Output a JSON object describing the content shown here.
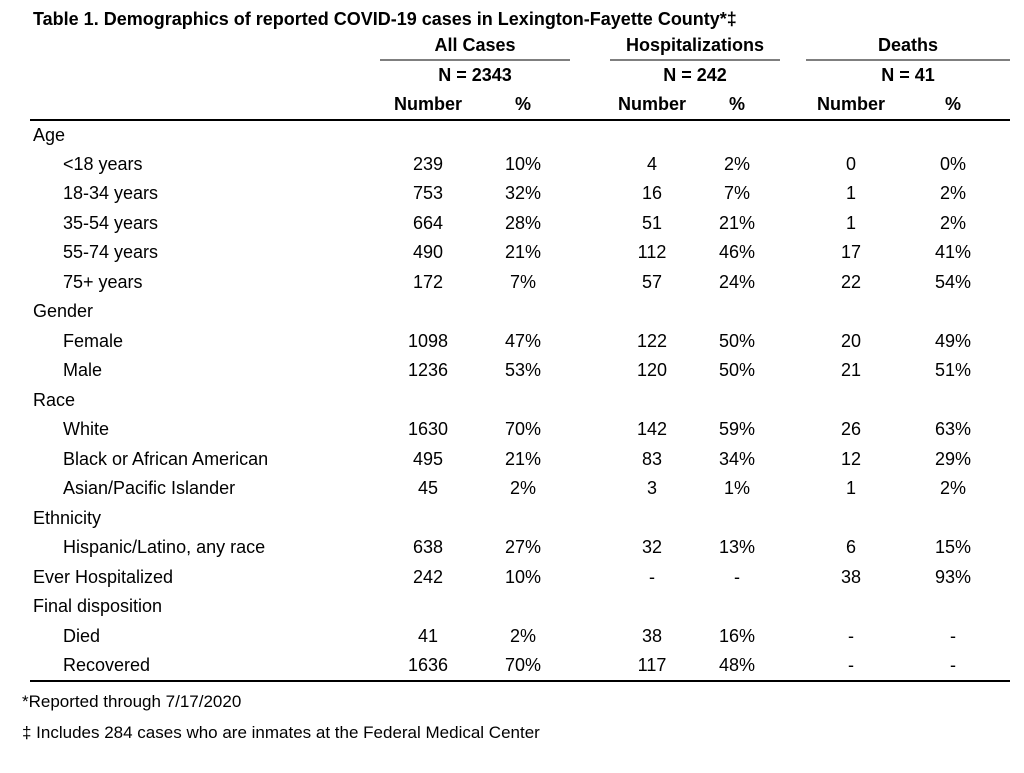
{
  "colors": {
    "background": "#ffffff",
    "text": "#000000",
    "rule": "#000000",
    "group_underline": "#7f7f7f"
  },
  "title": "Table 1. Demographics of reported COVID-19 cases in Lexington-Fayette County*‡",
  "table": {
    "groups": [
      {
        "label": "All Cases",
        "n_label": "N = 2343"
      },
      {
        "label": "Hospitalizations",
        "n_label": "N = 242"
      },
      {
        "label": "Deaths",
        "n_label": "N = 41"
      }
    ],
    "column_headers": {
      "number": "Number",
      "percent": "%"
    },
    "rows": [
      {
        "type": "category",
        "label": "Age"
      },
      {
        "type": "item",
        "label": "<18 years",
        "values": [
          "239",
          "10%",
          "4",
          "2%",
          "0",
          "0%"
        ]
      },
      {
        "type": "item",
        "label": "18-34 years",
        "values": [
          "753",
          "32%",
          "16",
          "7%",
          "1",
          "2%"
        ]
      },
      {
        "type": "item",
        "label": "35-54 years",
        "values": [
          "664",
          "28%",
          "51",
          "21%",
          "1",
          "2%"
        ]
      },
      {
        "type": "item",
        "label": "55-74 years",
        "values": [
          "490",
          "21%",
          "112",
          "46%",
          "17",
          "41%"
        ]
      },
      {
        "type": "item",
        "label": "75+ years",
        "values": [
          "172",
          "7%",
          "57",
          "24%",
          "22",
          "54%"
        ]
      },
      {
        "type": "category",
        "label": "Gender"
      },
      {
        "type": "item",
        "label": "Female",
        "values": [
          "1098",
          "47%",
          "122",
          "50%",
          "20",
          "49%"
        ]
      },
      {
        "type": "item",
        "label": "Male",
        "values": [
          "1236",
          "53%",
          "120",
          "50%",
          "21",
          "51%"
        ]
      },
      {
        "type": "category",
        "label": "Race"
      },
      {
        "type": "item",
        "label": "White",
        "values": [
          "1630",
          "70%",
          "142",
          "59%",
          "26",
          "63%"
        ]
      },
      {
        "type": "item",
        "label": "Black or African American",
        "values": [
          "495",
          "21%",
          "83",
          "34%",
          "12",
          "29%"
        ]
      },
      {
        "type": "item",
        "label": "Asian/Pacific Islander",
        "values": [
          "45",
          "2%",
          "3",
          "1%",
          "1",
          "2%"
        ]
      },
      {
        "type": "category",
        "label": "Ethnicity"
      },
      {
        "type": "item",
        "label": "Hispanic/Latino, any race",
        "values": [
          "638",
          "27%",
          "32",
          "13%",
          "6",
          "15%"
        ]
      },
      {
        "type": "toplevel-item",
        "label": "Ever Hospitalized",
        "values": [
          "242",
          "10%",
          "-",
          "-",
          "38",
          "93%"
        ]
      },
      {
        "type": "category",
        "label": "Final disposition"
      },
      {
        "type": "item",
        "label": "Died",
        "values": [
          "41",
          "2%",
          "38",
          "16%",
          "-",
          "-"
        ]
      },
      {
        "type": "item",
        "label": "Recovered",
        "values": [
          "1636",
          "70%",
          "117",
          "48%",
          "-",
          "-"
        ]
      }
    ]
  },
  "footnotes": [
    "*Reported through 7/17/2020",
    "‡ Includes 284 cases who are inmates at the Federal Medical Center"
  ]
}
